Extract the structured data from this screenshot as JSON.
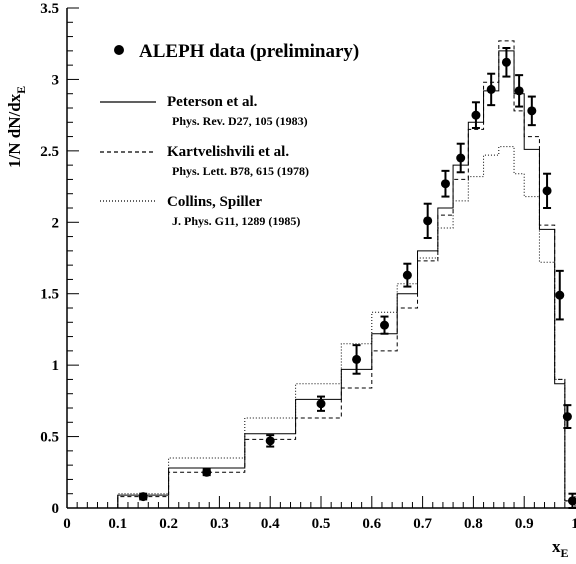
{
  "chart_data": {
    "type": "line",
    "xlabel": "x",
    "xlabel_sub": "E",
    "ylabel": "1/N dN/dx",
    "ylabel_sub": "E",
    "xlim": [
      0,
      1
    ],
    "ylim": [
      0,
      3.5
    ],
    "x_ticks": [
      "0",
      "0.1",
      "0.2",
      "0.3",
      "0.4",
      "0.5",
      "0.6",
      "0.7",
      "0.8",
      "0.9",
      "1"
    ],
    "y_ticks": [
      "0",
      "0.5",
      "1",
      "1.5",
      "2",
      "2.5",
      "3",
      "3.5"
    ],
    "bin_edges": [
      0.1,
      0.2,
      0.35,
      0.45,
      0.54,
      0.6,
      0.65,
      0.69,
      0.73,
      0.76,
      0.79,
      0.82,
      0.85,
      0.88,
      0.9,
      0.93,
      0.96,
      0.98,
      1.0
    ],
    "data": {
      "name": "ALEPH data (preliminary)",
      "points": [
        {
          "x": 0.15,
          "y": 0.08,
          "err": 0.02
        },
        {
          "x": 0.275,
          "y": 0.25,
          "err": 0.02
        },
        {
          "x": 0.4,
          "y": 0.47,
          "err": 0.04
        },
        {
          "x": 0.5,
          "y": 0.73,
          "err": 0.05
        },
        {
          "x": 0.57,
          "y": 1.04,
          "err": 0.1
        },
        {
          "x": 0.625,
          "y": 1.28,
          "err": 0.06
        },
        {
          "x": 0.67,
          "y": 1.63,
          "err": 0.08
        },
        {
          "x": 0.71,
          "y": 2.01,
          "err": 0.12
        },
        {
          "x": 0.745,
          "y": 2.27,
          "err": 0.09
        },
        {
          "x": 0.775,
          "y": 2.45,
          "err": 0.1
        },
        {
          "x": 0.805,
          "y": 2.75,
          "err": 0.09
        },
        {
          "x": 0.835,
          "y": 2.93,
          "err": 0.11
        },
        {
          "x": 0.865,
          "y": 3.12,
          "err": 0.1
        },
        {
          "x": 0.89,
          "y": 2.92,
          "err": 0.11
        },
        {
          "x": 0.915,
          "y": 2.78,
          "err": 0.1
        },
        {
          "x": 0.945,
          "y": 2.22,
          "err": 0.12
        },
        {
          "x": 0.97,
          "y": 1.49,
          "err": 0.17
        },
        {
          "x": 0.985,
          "y": 0.64,
          "err": 0.08
        },
        {
          "x": 0.995,
          "y": 0.05,
          "err": 0.05
        }
      ]
    },
    "series": [
      {
        "name": "Peterson et al.",
        "citation": "Phys. Rev. D27, 105 (1983)",
        "dash": "solid",
        "values": [
          0.09,
          0.28,
          0.52,
          0.76,
          0.97,
          1.22,
          1.5,
          1.8,
          2.1,
          2.4,
          2.7,
          2.92,
          3.2,
          2.9,
          2.51,
          1.95,
          0.87,
          0.05
        ]
      },
      {
        "name": "Kartvelishvili et al.",
        "citation": "Phys. Lett. B78, 615 (1978)",
        "dash": "dashed",
        "values": [
          0.08,
          0.25,
          0.48,
          0.63,
          0.84,
          1.1,
          1.4,
          1.73,
          2.05,
          2.3,
          2.65,
          2.98,
          3.27,
          2.78,
          2.6,
          1.98,
          0.9,
          0.05
        ]
      },
      {
        "name": "Collins, Spiller",
        "citation": "J. Phys. G11, 1289 (1985)",
        "dash": "dotted",
        "values": [
          0.1,
          0.35,
          0.63,
          0.87,
          1.15,
          1.37,
          1.57,
          1.75,
          1.96,
          2.15,
          2.32,
          2.47,
          2.53,
          2.34,
          2.18,
          1.72,
          0.9,
          0.05
        ]
      }
    ]
  }
}
